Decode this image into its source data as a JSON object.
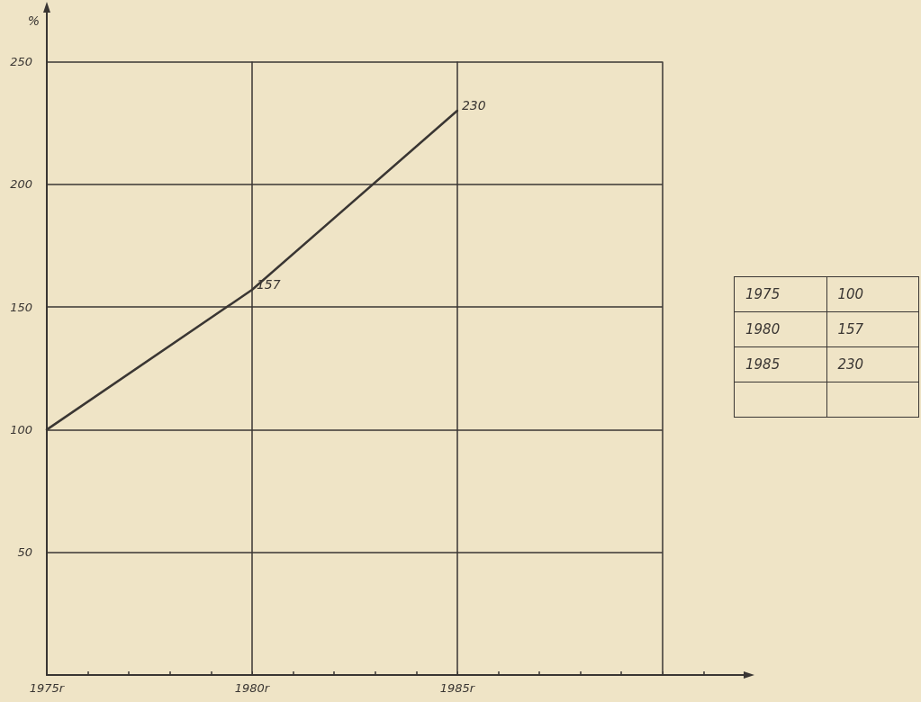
{
  "chart_data": [
    {
      "type": "line",
      "ylabel": "%",
      "x": [
        1975,
        1980,
        1985
      ],
      "series": [
        {
          "color": "#3a3633",
          "values": [
            100,
            157,
            230
          ],
          "value_labels": [
            null,
            "157",
            "230"
          ]
        }
      ],
      "xlim": [
        1975,
        1992
      ],
      "xticks": [
        {
          "value": 1975,
          "label": "1975r"
        },
        {
          "value": 1980,
          "label": "1980r"
        },
        {
          "value": 1985,
          "label": "1985r"
        },
        {
          "value": 1990,
          "label": null
        }
      ],
      "ylim": [
        0,
        270
      ],
      "yticks": [
        {
          "value": 0,
          "label": null
        },
        50,
        100,
        150,
        200,
        250
      ],
      "grid": true,
      "marker": "none",
      "line_style": "solid"
    },
    {
      "type": "other",
      "categories": [
        "1975",
        "1980",
        "1985",
        null
      ],
      "values": [
        100,
        157,
        230,
        null
      ],
      "data_labels": true
    }
  ]
}
